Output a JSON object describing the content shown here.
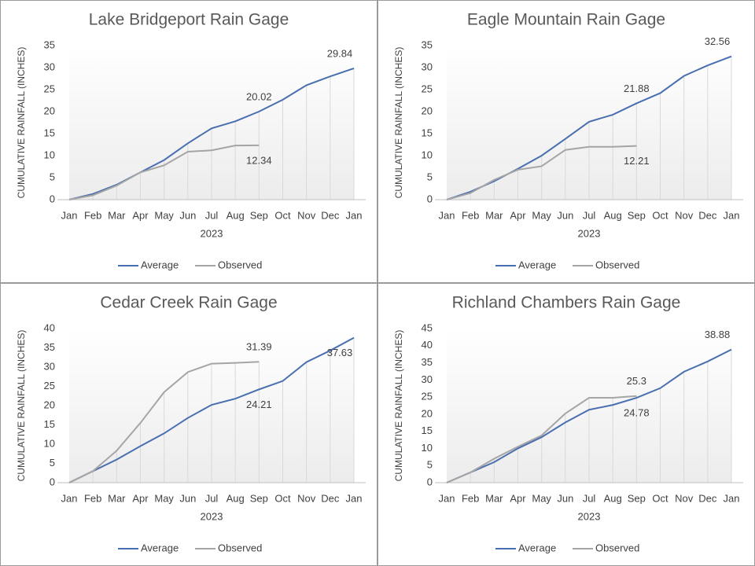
{
  "chart_data": [
    {
      "type": "line",
      "title": "Lake Bridgeport Rain Gage",
      "x_label": "2023",
      "y_label": "CUMULATIVE RAINFALL (INCHES)",
      "categories": [
        "Jan",
        "Feb",
        "Mar",
        "Apr",
        "May",
        "Jun",
        "Jul",
        "Aug",
        "Sep",
        "Oct",
        "Nov",
        "Dec",
        "Jan"
      ],
      "ylim": [
        0,
        35
      ],
      "yticks": [
        0,
        5,
        10,
        15,
        20,
        25,
        30,
        35
      ],
      "legend": "bottom",
      "series": [
        {
          "name": "Average",
          "color": "#4a6fb0",
          "values": [
            0,
            1.3,
            3.4,
            6.2,
            9.0,
            12.8,
            16.2,
            17.8,
            20.02,
            22.7,
            26.0,
            28.0,
            29.84
          ],
          "value_labels": [
            null,
            null,
            null,
            null,
            null,
            null,
            null,
            null,
            "20.02",
            null,
            null,
            null,
            "29.84"
          ]
        },
        {
          "name": "Observed",
          "color": "#a5a5a5",
          "values": [
            0,
            1.0,
            3.2,
            6.2,
            7.8,
            10.9,
            11.2,
            12.3,
            12.34,
            null,
            null,
            null,
            null
          ],
          "value_labels": [
            null,
            null,
            null,
            null,
            null,
            null,
            null,
            null,
            "12.34",
            null,
            null,
            null,
            null
          ]
        }
      ]
    },
    {
      "type": "line",
      "title": "Eagle Mountain Rain Gage",
      "x_label": "2023",
      "y_label": "CUMULATIVE RAINFALL (INCHES)",
      "categories": [
        "Jan",
        "Feb",
        "Mar",
        "Apr",
        "May",
        "Jun",
        "Jul",
        "Aug",
        "Sep",
        "Oct",
        "Nov",
        "Dec",
        "Jan"
      ],
      "ylim": [
        0,
        35
      ],
      "yticks": [
        0,
        5,
        10,
        15,
        20,
        25,
        30,
        35
      ],
      "legend": "bottom",
      "series": [
        {
          "name": "Average",
          "color": "#4a6fb0",
          "values": [
            0,
            1.8,
            4.2,
            7.0,
            10.0,
            13.8,
            17.7,
            19.3,
            21.88,
            24.2,
            28.1,
            30.5,
            32.56
          ],
          "value_labels": [
            null,
            null,
            null,
            null,
            null,
            null,
            null,
            null,
            "21.88",
            null,
            null,
            null,
            "32.56"
          ]
        },
        {
          "name": "Observed",
          "color": "#a5a5a5",
          "values": [
            0,
            1.5,
            4.5,
            6.8,
            7.6,
            11.3,
            12.0,
            12.0,
            12.21,
            null,
            null,
            null,
            null
          ],
          "value_labels": [
            null,
            null,
            null,
            null,
            null,
            null,
            null,
            null,
            "12.21",
            null,
            null,
            null,
            null
          ]
        }
      ]
    },
    {
      "type": "line",
      "title": "Cedar Creek Rain Gage",
      "x_label": "2023",
      "y_label": "CUMULATIVE RAINFALL (INCHES)",
      "categories": [
        "Jan",
        "Feb",
        "Mar",
        "Apr",
        "May",
        "Jun",
        "Jul",
        "Aug",
        "Sep",
        "Oct",
        "Nov",
        "Dec",
        "Jan"
      ],
      "ylim": [
        0,
        40
      ],
      "yticks": [
        0,
        5,
        10,
        15,
        20,
        25,
        30,
        35,
        40
      ],
      "legend": "bottom",
      "series": [
        {
          "name": "Average",
          "color": "#4a6fb0",
          "values": [
            0,
            3.0,
            6.0,
            9.5,
            12.8,
            16.8,
            20.2,
            21.8,
            24.21,
            26.4,
            31.3,
            34.3,
            37.63
          ],
          "value_labels": [
            null,
            null,
            null,
            null,
            null,
            null,
            null,
            null,
            "24.21",
            null,
            null,
            null,
            "37.63"
          ]
        },
        {
          "name": "Observed",
          "color": "#a5a5a5",
          "values": [
            0,
            3.0,
            8.3,
            15.5,
            23.5,
            28.7,
            30.9,
            31.1,
            31.39,
            null,
            null,
            null,
            null
          ],
          "value_labels": [
            null,
            null,
            null,
            null,
            null,
            null,
            null,
            null,
            "31.39",
            null,
            null,
            null,
            null
          ]
        }
      ]
    },
    {
      "type": "line",
      "title": "Richland Chambers Rain Gage",
      "x_label": "2023",
      "y_label": "CUMULATIVE RAINFALL (INCHES)",
      "categories": [
        "Jan",
        "Feb",
        "Mar",
        "Apr",
        "May",
        "Jun",
        "Jul",
        "Aug",
        "Sep",
        "Oct",
        "Nov",
        "Dec",
        "Jan"
      ],
      "ylim": [
        0,
        45
      ],
      "yticks": [
        0,
        5,
        10,
        15,
        20,
        25,
        30,
        35,
        40,
        45
      ],
      "legend": "bottom",
      "series": [
        {
          "name": "Average",
          "color": "#4a6fb0",
          "values": [
            0,
            3.0,
            6.0,
            10.0,
            13.3,
            17.6,
            21.3,
            22.7,
            24.78,
            27.6,
            32.4,
            35.4,
            38.88
          ],
          "value_labels": [
            null,
            null,
            null,
            null,
            null,
            null,
            null,
            null,
            "24.78",
            null,
            null,
            null,
            "38.88"
          ]
        },
        {
          "name": "Observed",
          "color": "#a5a5a5",
          "values": [
            0,
            3.0,
            7.0,
            10.5,
            13.8,
            20.2,
            24.8,
            24.8,
            25.3,
            null,
            null,
            null,
            null
          ],
          "value_labels": [
            null,
            null,
            null,
            null,
            null,
            null,
            null,
            null,
            "25.3",
            null,
            null,
            null,
            null
          ]
        }
      ]
    }
  ]
}
